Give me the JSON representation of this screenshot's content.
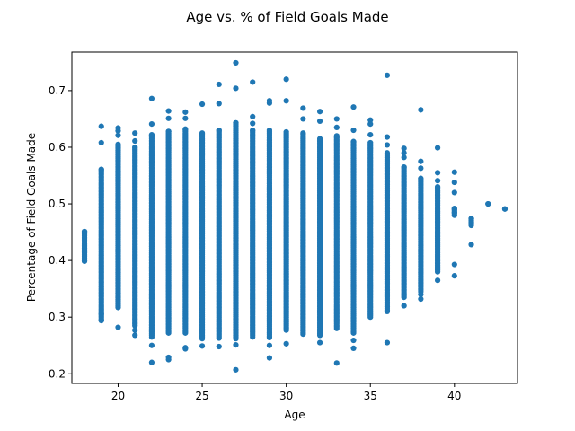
{
  "chart_data": {
    "type": "scatter",
    "title": "Age vs. % of Field Goals Made",
    "xlabel": "Age",
    "ylabel": "Percentage of Field Goals Made",
    "xlim": [
      17.25,
      43.75
    ],
    "ylim": [
      0.183,
      0.768
    ],
    "xticks": [
      20,
      25,
      30,
      35,
      40
    ],
    "yticks": [
      0.2,
      0.3,
      0.4,
      0.5,
      0.6,
      0.7
    ],
    "xtick_labels": [
      "20",
      "25",
      "30",
      "35",
      "40"
    ],
    "ytick_labels": [
      "0.2",
      "0.3",
      "0.4",
      "0.5",
      "0.6",
      "0.7"
    ],
    "grid": false,
    "legend": "none",
    "point_color": "#1f77b4",
    "columns": [
      {
        "age": 18,
        "min": 0.399,
        "max": 0.451,
        "points": [
          0.399,
          0.416,
          0.451
        ]
      },
      {
        "age": 19,
        "min": 0.294,
        "max": 0.561,
        "points": [
          0.637,
          0.608,
          0.294,
          0.305
        ]
      },
      {
        "age": 20,
        "min": 0.317,
        "max": 0.605,
        "points": [
          0.634,
          0.629,
          0.621,
          0.282
        ]
      },
      {
        "age": 21,
        "min": 0.285,
        "max": 0.6,
        "points": [
          0.625,
          0.611,
          0.277,
          0.268
        ]
      },
      {
        "age": 22,
        "min": 0.265,
        "max": 0.622,
        "points": [
          0.686,
          0.641,
          0.25,
          0.22
        ]
      },
      {
        "age": 23,
        "min": 0.272,
        "max": 0.628,
        "points": [
          0.664,
          0.651,
          0.229,
          0.225
        ]
      },
      {
        "age": 24,
        "min": 0.272,
        "max": 0.632,
        "points": [
          0.662,
          0.651,
          0.246,
          0.244
        ]
      },
      {
        "age": 25,
        "min": 0.262,
        "max": 0.625,
        "points": [
          0.676,
          0.249
        ]
      },
      {
        "age": 26,
        "min": 0.263,
        "max": 0.63,
        "points": [
          0.711,
          0.677,
          0.248
        ]
      },
      {
        "age": 27,
        "min": 0.262,
        "max": 0.643,
        "points": [
          0.749,
          0.704,
          0.251,
          0.207
        ]
      },
      {
        "age": 28,
        "min": 0.265,
        "max": 0.63,
        "points": [
          0.715,
          0.654,
          0.642
        ]
      },
      {
        "age": 29,
        "min": 0.264,
        "max": 0.63,
        "points": [
          0.682,
          0.678,
          0.25,
          0.228
        ]
      },
      {
        "age": 30,
        "min": 0.277,
        "max": 0.627,
        "points": [
          0.72,
          0.682,
          0.253
        ]
      },
      {
        "age": 31,
        "min": 0.27,
        "max": 0.625,
        "points": [
          0.669,
          0.65
        ]
      },
      {
        "age": 32,
        "min": 0.268,
        "max": 0.615,
        "points": [
          0.663,
          0.646,
          0.255
        ]
      },
      {
        "age": 33,
        "min": 0.28,
        "max": 0.62,
        "points": [
          0.65,
          0.635,
          0.219
        ]
      },
      {
        "age": 34,
        "min": 0.272,
        "max": 0.61,
        "points": [
          0.671,
          0.63,
          0.259,
          0.245
        ]
      },
      {
        "age": 35,
        "min": 0.3,
        "max": 0.608,
        "points": [
          0.648,
          0.641,
          0.622
        ]
      },
      {
        "age": 36,
        "min": 0.31,
        "max": 0.59,
        "points": [
          0.727,
          0.618,
          0.604,
          0.255
        ]
      },
      {
        "age": 37,
        "min": 0.335,
        "max": 0.565,
        "points": [
          0.598,
          0.59,
          0.582,
          0.32
        ]
      },
      {
        "age": 38,
        "min": 0.345,
        "max": 0.545,
        "points": [
          0.666,
          0.575,
          0.563,
          0.34,
          0.332
        ]
      },
      {
        "age": 39,
        "min": 0.38,
        "max": 0.53,
        "points": [
          0.599,
          0.555,
          0.541,
          0.365
        ]
      },
      {
        "age": 40,
        "min": 0.48,
        "max": 0.492,
        "points": [
          0.556,
          0.538,
          0.52,
          0.49,
          0.485,
          0.393,
          0.373
        ]
      },
      {
        "age": 41,
        "min": 0.462,
        "max": 0.474,
        "points": [
          0.474,
          0.466,
          0.428
        ]
      },
      {
        "age": 42,
        "min": 0.5,
        "max": 0.5,
        "points": [
          0.5
        ]
      },
      {
        "age": 43,
        "min": 0.491,
        "max": 0.491,
        "points": [
          0.491
        ]
      }
    ]
  }
}
